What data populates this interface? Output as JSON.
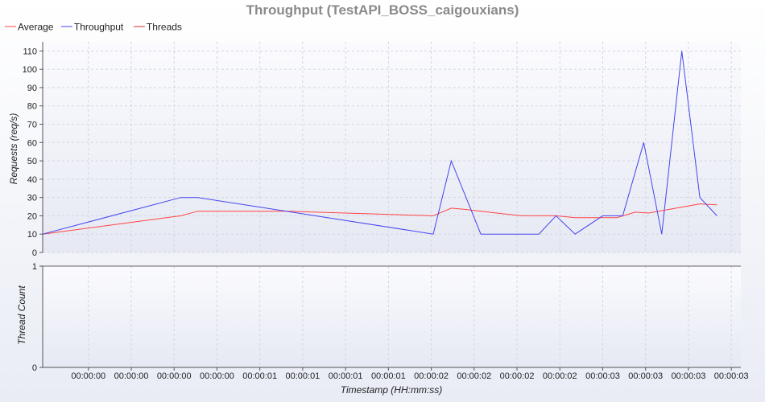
{
  "chart_data": {
    "type": "line",
    "title": "Throughput (TestAPI_BOSS_caigouxians)",
    "legend": {
      "placement": "top-left",
      "entries": [
        {
          "name": "Average",
          "color": "#ff4444"
        },
        {
          "name": "Throughput",
          "color": "#4444ee"
        },
        {
          "name": "Threads",
          "color": "#cc3333"
        }
      ]
    },
    "top_panel": {
      "ylabel": "Requests (req/s)",
      "ylim": [
        0,
        115
      ],
      "yticks": [
        0,
        10,
        20,
        30,
        40,
        50,
        60,
        70,
        80,
        90,
        100,
        110
      ],
      "grid": true
    },
    "bottom_panel": {
      "ylabel": "Thread Count",
      "ylim": [
        0,
        1
      ],
      "yticks": [
        0,
        1
      ],
      "grid": true
    },
    "xlabel": "Timestamp (HH:mm:ss)",
    "x_tick_labels": [
      "00:00:00",
      "00:00:00",
      "00:00:00",
      "00:00:00",
      "00:00:01",
      "00:00:01",
      "00:00:01",
      "00:00:01",
      "00:00:02",
      "00:00:02",
      "00:00:02",
      "00:00:02",
      "00:00:03",
      "00:00:03",
      "00:00:03",
      "00:00:03"
    ],
    "x_tick_positions": [
      0.15,
      0.6,
      1.05,
      1.5,
      1.95,
      2.4,
      2.85,
      3.3,
      3.75,
      4.2,
      4.65,
      5.1,
      5.55,
      6.0,
      6.45,
      6.9
    ],
    "xlim": [
      -0.33,
      7.0
    ],
    "series": [
      {
        "name": "Average",
        "color": "#ff4444",
        "panel": "top",
        "x": [
          -0.33,
          1.12,
          1.3,
          2.24,
          3.77,
          3.96,
          4.11,
          4.27,
          4.53,
          4.71,
          4.9,
          5.06,
          5.26,
          5.55,
          5.7,
          5.89,
          6.03,
          6.57,
          6.75
        ],
        "y": [
          10,
          20,
          22.5,
          22.5,
          20,
          24.2,
          23.5,
          22.5,
          21,
          20,
          20,
          20,
          19,
          19,
          19,
          22,
          21.5,
          26.5,
          26
        ]
      },
      {
        "name": "Throughput",
        "color": "#4444ee",
        "panel": "top",
        "x": [
          -0.33,
          1.12,
          1.3,
          3.77,
          3.96,
          4.27,
          4.53,
          4.88,
          5.06,
          5.26,
          5.55,
          5.76,
          5.98,
          6.17,
          6.38,
          6.57,
          6.75
        ],
        "y": [
          10,
          30,
          30,
          10,
          50,
          10,
          10,
          10,
          20,
          10,
          20,
          20,
          60,
          10,
          110,
          30,
          20
        ]
      }
    ]
  }
}
